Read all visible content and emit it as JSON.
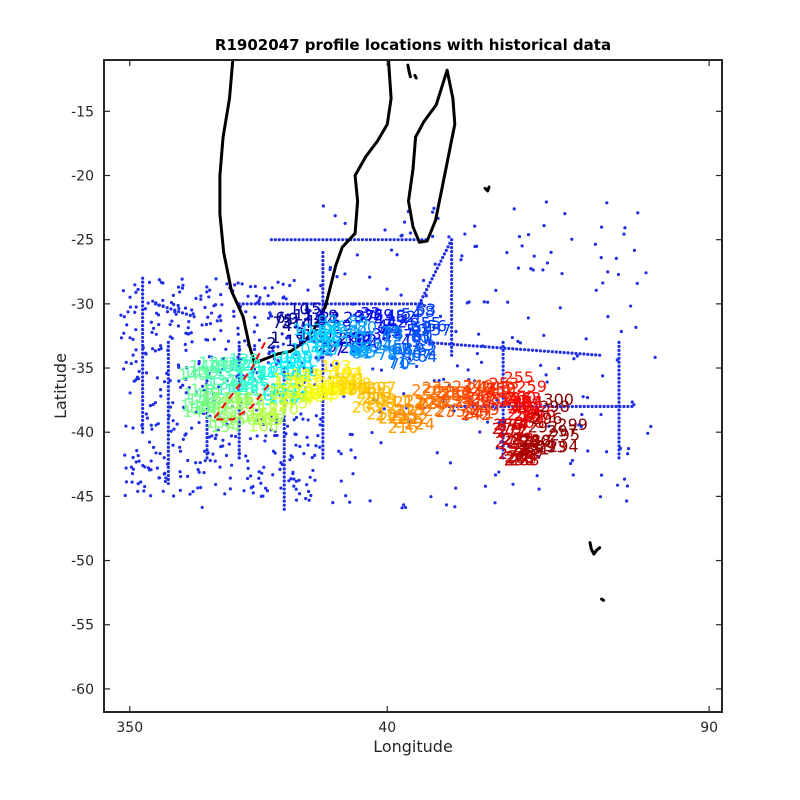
{
  "chart_data": {
    "type": "scatter",
    "title": "R1902047 profile locations with historical data",
    "xlabel": "Longitude",
    "ylabel": "Latitude",
    "xlim": [
      -4,
      92
    ],
    "ylim": [
      -61.8,
      -11
    ],
    "xticks": [
      {
        "value": 0,
        "label": "350"
      },
      {
        "value": 40,
        "label": "40"
      },
      {
        "value": 90,
        "label": "90"
      }
    ],
    "yticks": [
      -15,
      -20,
      -25,
      -30,
      -35,
      -40,
      -45,
      -50,
      -55,
      -60
    ],
    "grid": false,
    "colors": {
      "historical": "#1f2fe6",
      "track": "#ff0000",
      "coastline": "#000000"
    },
    "historical_series": {
      "name": "historical profiles",
      "lines": [
        {
          "from": [
            17,
            -30
          ],
          "to": [
            45,
            -30
          ]
        },
        {
          "from": [
            45,
            -30
          ],
          "to": [
            50,
            -25
          ]
        },
        {
          "from": [
            22,
            -25
          ],
          "to": [
            46,
            -25
          ]
        },
        {
          "from": [
            46,
            -33
          ],
          "to": [
            73,
            -34
          ]
        },
        {
          "from": [
            49,
            -38
          ],
          "to": [
            78,
            -38
          ]
        },
        {
          "from": [
            4,
            -30
          ],
          "to": [
            10,
            -31
          ]
        },
        {
          "from": [
            12,
            -36
          ],
          "to": [
            12,
            -42
          ]
        },
        {
          "from": [
            24,
            -35
          ],
          "to": [
            24,
            -46
          ]
        },
        {
          "from": [
            50,
            -25
          ],
          "to": [
            50,
            -34
          ]
        },
        {
          "from": [
            58,
            -33
          ],
          "to": [
            58,
            -42
          ]
        },
        {
          "from": [
            6,
            -33
          ],
          "to": [
            6,
            -44
          ]
        },
        {
          "from": [
            2,
            -28
          ],
          "to": [
            2,
            -40
          ]
        },
        {
          "from": [
            76,
            -33
          ],
          "to": [
            76,
            -42
          ]
        },
        {
          "from": [
            17,
            -33
          ],
          "to": [
            17,
            -42
          ]
        },
        {
          "from": [
            30,
            -26
          ],
          "to": [
            30,
            -42
          ]
        }
      ],
      "cloud": {
        "lon_range": [
          -2,
          82
        ],
        "lat_range": [
          -46,
          -22
        ],
        "count": 700
      }
    },
    "profiles": {
      "name": "R1902047 profile numbers",
      "colormap": "jet",
      "count": 300,
      "path": [
        [
          23,
          -34
        ],
        [
          24,
          -32
        ],
        [
          28,
          -32
        ],
        [
          33,
          -33
        ],
        [
          37,
          -32
        ],
        [
          40,
          -33
        ],
        [
          44,
          -32
        ],
        [
          47,
          -32
        ],
        [
          46,
          -34
        ],
        [
          43,
          -34
        ],
        [
          38,
          -33
        ],
        [
          34,
          -33
        ],
        [
          30,
          -33
        ],
        [
          27,
          -34
        ],
        [
          25,
          -36
        ],
        [
          21,
          -37
        ],
        [
          18,
          -36
        ],
        [
          13,
          -36
        ],
        [
          11,
          -37
        ],
        [
          12,
          -39
        ],
        [
          15,
          -39
        ],
        [
          19,
          -39
        ],
        [
          23,
          -38
        ],
        [
          27,
          -37
        ],
        [
          31,
          -36
        ],
        [
          35,
          -36
        ],
        [
          37,
          -38
        ],
        [
          39,
          -38
        ],
        [
          41,
          -39
        ],
        [
          45,
          -39
        ],
        [
          47,
          -38
        ],
        [
          50,
          -38
        ],
        [
          53,
          -38
        ],
        [
          56,
          -38
        ],
        [
          58,
          -37
        ],
        [
          61,
          -38
        ],
        [
          63,
          -39
        ],
        [
          60,
          -40
        ],
        [
          58,
          -41
        ],
        [
          62,
          -42
        ],
        [
          65,
          -41
        ],
        [
          68,
          -39
        ]
      ]
    },
    "track": {
      "points": [
        [
          21,
          -33
        ],
        [
          19,
          -35
        ],
        [
          16,
          -37
        ],
        [
          13,
          -39
        ],
        [
          16,
          -39
        ],
        [
          19,
          -38
        ],
        [
          22,
          -36
        ]
      ]
    },
    "coastlines": [
      {
        "name": "africa-east-coast",
        "points": [
          [
            16,
            -11
          ],
          [
            15.5,
            -14
          ],
          [
            14.5,
            -17
          ],
          [
            14,
            -20
          ],
          [
            14,
            -23
          ],
          [
            14.6,
            -26
          ],
          [
            15.8,
            -29
          ],
          [
            17.6,
            -31
          ],
          [
            18.6,
            -33.3
          ],
          [
            19.4,
            -34.6
          ],
          [
            21,
            -34.3
          ],
          [
            23,
            -33.9
          ],
          [
            25,
            -33.7
          ],
          [
            27,
            -33
          ],
          [
            28.6,
            -32
          ],
          [
            30.4,
            -30.2
          ],
          [
            31.2,
            -28.6
          ],
          [
            32,
            -27
          ],
          [
            33,
            -25.6
          ],
          [
            35,
            -24.5
          ],
          [
            35.4,
            -22
          ],
          [
            35,
            -20
          ],
          [
            36.7,
            -18.5
          ],
          [
            38.5,
            -17.3
          ],
          [
            40,
            -16
          ],
          [
            40.6,
            -14
          ],
          [
            40.2,
            -11
          ]
        ]
      },
      {
        "name": "madagascar",
        "points": [
          [
            49.3,
            -11.8
          ],
          [
            50.2,
            -14
          ],
          [
            50.5,
            -16
          ],
          [
            49.5,
            -18.5
          ],
          [
            48.5,
            -21
          ],
          [
            47.5,
            -23.5
          ],
          [
            46.2,
            -25.1
          ],
          [
            45,
            -25.2
          ],
          [
            44,
            -24
          ],
          [
            43.3,
            -22
          ],
          [
            44,
            -19.5
          ],
          [
            44.4,
            -17
          ],
          [
            45.7,
            -15.8
          ],
          [
            47.6,
            -14.5
          ],
          [
            49.3,
            -11.8
          ]
        ]
      },
      {
        "name": "comoros-1",
        "points": [
          [
            43.2,
            -11.4
          ],
          [
            43.4,
            -11.9
          ],
          [
            43.6,
            -12.3
          ]
        ]
      },
      {
        "name": "comoros-2",
        "points": [
          [
            44.3,
            -12.2
          ],
          [
            44.5,
            -12.4
          ]
        ]
      },
      {
        "name": "mascarene",
        "points": [
          [
            55.2,
            -21
          ],
          [
            55.6,
            -21.2
          ],
          [
            55.8,
            -20.9
          ]
        ]
      },
      {
        "name": "crozet-1",
        "points": [
          [
            71.5,
            -48.6
          ],
          [
            71.7,
            -49.1
          ],
          [
            72.1,
            -49.5
          ],
          [
            72.5,
            -49.2
          ],
          [
            73,
            -49
          ]
        ]
      },
      {
        "name": "crozet-2",
        "points": [
          [
            73.3,
            -53.0
          ],
          [
            73.6,
            -53.1
          ]
        ]
      }
    ]
  }
}
